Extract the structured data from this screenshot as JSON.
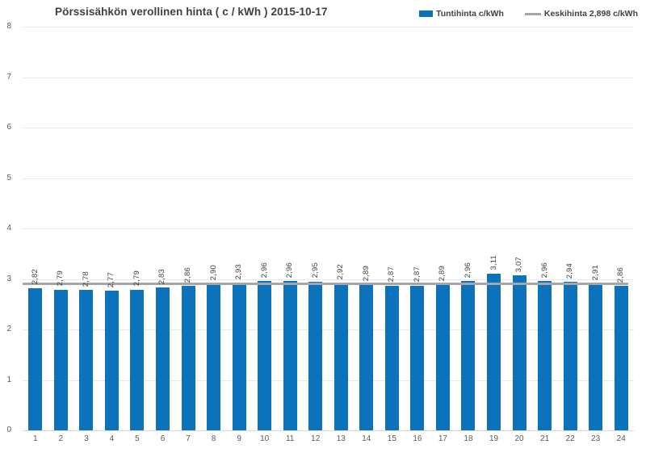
{
  "title": "Pörssisähkön verollinen hinta ( c / kWh ) 2015-10-17",
  "legend": {
    "bar_series_label": "Tuntihinta c/kWh",
    "average_series_label": "Keskihinta 2,898 c/kWh"
  },
  "colors": {
    "bar": "#0C72BC",
    "average_line": "#A6A6A6",
    "gridline": "#E8E8E8",
    "axis_line": "#D9D9D9",
    "value_label": "#404040",
    "tick_label": "#595959",
    "title": "#404040"
  },
  "chart_data": {
    "type": "bar",
    "title": "Pörssisähkön verollinen hinta ( c / kWh ) 2015-10-17",
    "xlabel": "",
    "ylabel": "",
    "categories": [
      "1",
      "2",
      "3",
      "4",
      "5",
      "6",
      "7",
      "8",
      "9",
      "10",
      "11",
      "12",
      "13",
      "14",
      "15",
      "16",
      "17",
      "18",
      "19",
      "20",
      "21",
      "22",
      "23",
      "24"
    ],
    "values": [
      2.82,
      2.79,
      2.78,
      2.77,
      2.79,
      2.83,
      2.86,
      2.9,
      2.93,
      2.96,
      2.96,
      2.95,
      2.92,
      2.89,
      2.87,
      2.87,
      2.89,
      2.96,
      3.11,
      3.07,
      2.96,
      2.94,
      2.91,
      2.86
    ],
    "value_labels": [
      "2,82",
      "2,79",
      "2,78",
      "2,77",
      "2,79",
      "2,83",
      "2,86",
      "2,90",
      "2,93",
      "2,96",
      "2,96",
      "2,95",
      "2,92",
      "2,89",
      "2,87",
      "2,87",
      "2,89",
      "2,96",
      "3,11",
      "3,07",
      "2,96",
      "2,94",
      "2,91",
      "2,86"
    ],
    "series": [
      {
        "name": "Tuntihinta c/kWh",
        "type": "bar"
      },
      {
        "name": "Keskihinta 2,898 c/kWh",
        "type": "line",
        "value": 2.898
      }
    ],
    "average": 2.898,
    "ylim": [
      0,
      8
    ],
    "ytick_step": 1,
    "yticks": [
      "0",
      "1",
      "2",
      "3",
      "4",
      "5",
      "6",
      "7",
      "8"
    ],
    "grid": true,
    "legend_position": "top-right",
    "decimal_separator": ","
  }
}
